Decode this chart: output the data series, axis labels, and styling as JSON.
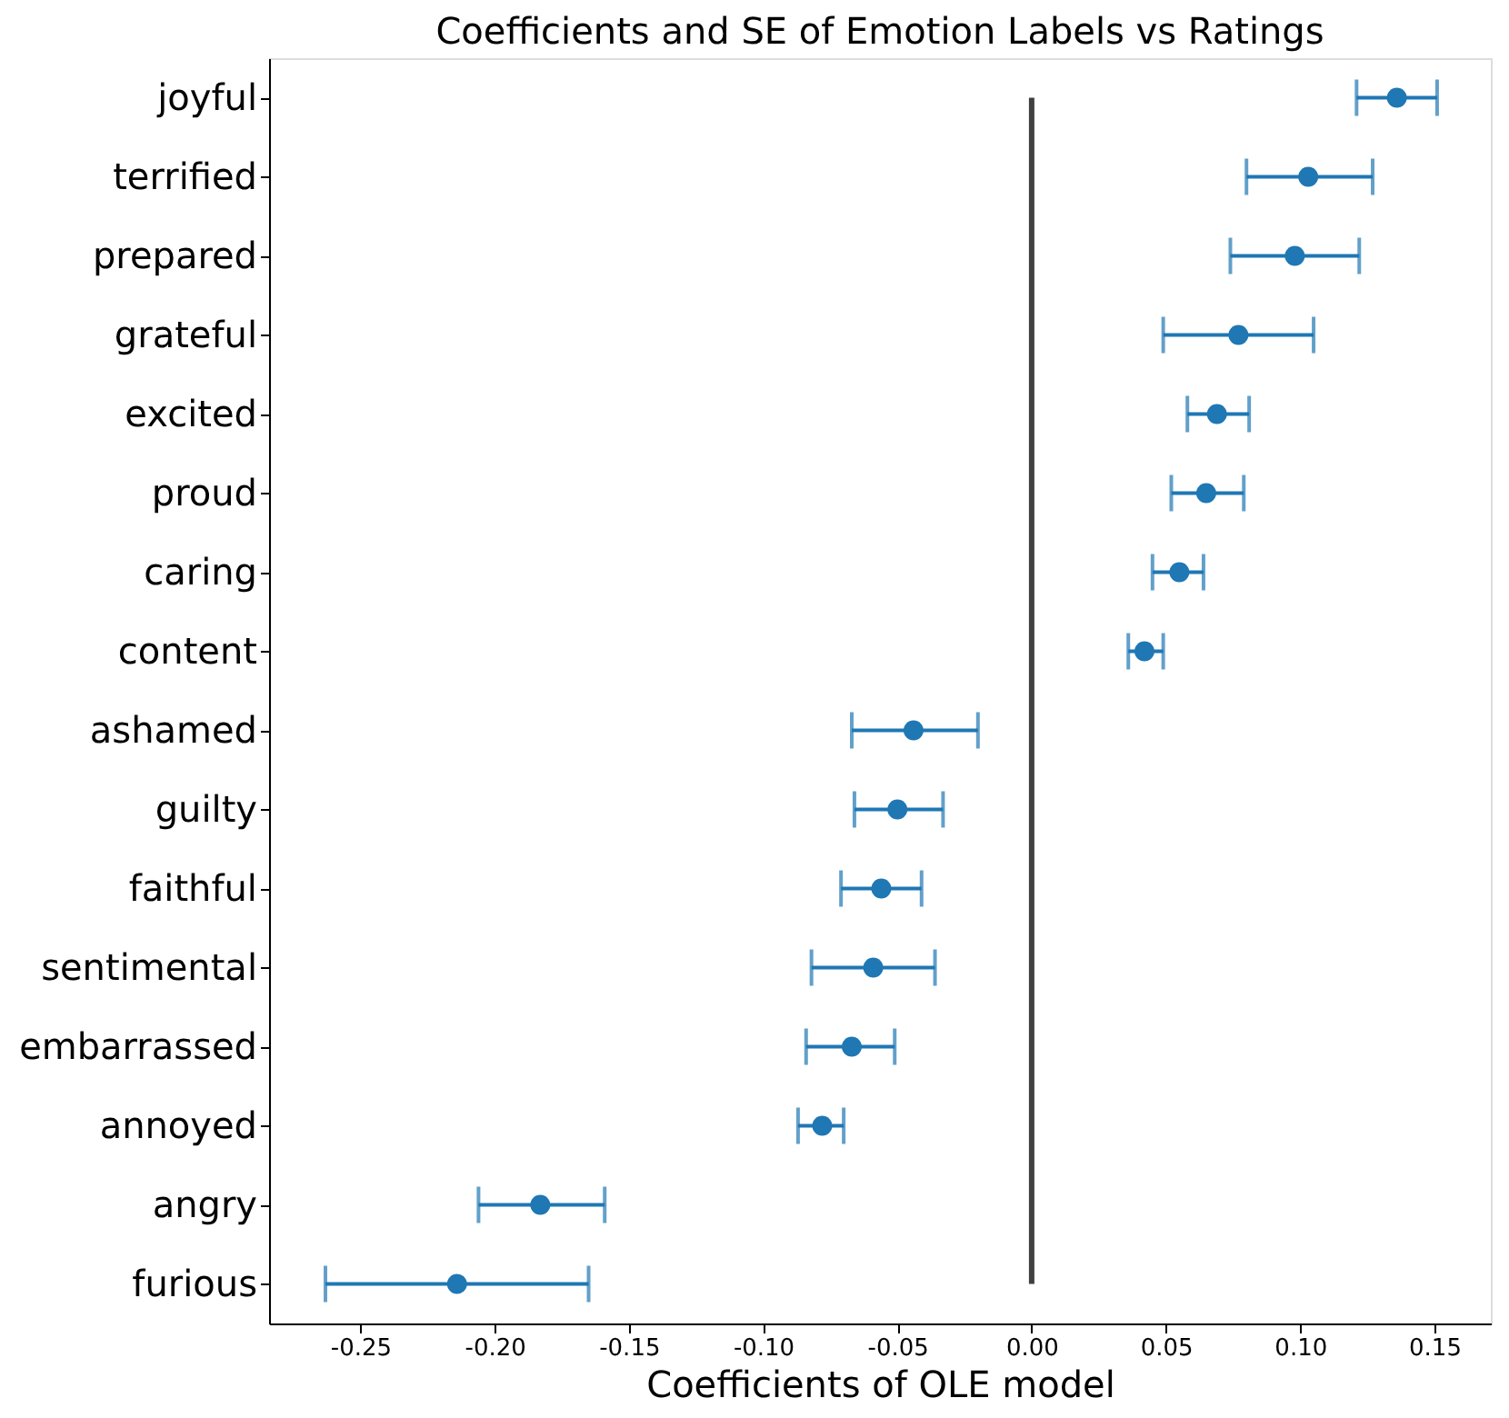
{
  "chart_data": {
    "type": "scatter",
    "orientation": "horizontal",
    "title": "Coefficients and SE of Emotion Labels vs Ratings",
    "xlabel": "Coefficients of OLE model",
    "categories": [
      "joyful",
      "terrified",
      "prepared",
      "grateful",
      "excited",
      "proud",
      "caring",
      "content",
      "ashamed",
      "guilty",
      "faithful",
      "sentimental",
      "embarrassed",
      "annoyed",
      "angry",
      "furious"
    ],
    "values": [
      0.136,
      0.103,
      0.098,
      0.077,
      0.069,
      0.065,
      0.055,
      0.042,
      -0.044,
      -0.05,
      -0.056,
      -0.059,
      -0.067,
      -0.078,
      -0.183,
      -0.214
    ],
    "errors": [
      [
        0.121,
        0.151
      ],
      [
        0.08,
        0.127
      ],
      [
        0.074,
        0.122
      ],
      [
        0.049,
        0.105
      ],
      [
        0.058,
        0.081
      ],
      [
        0.052,
        0.079
      ],
      [
        0.045,
        0.064
      ],
      [
        0.036,
        0.049
      ],
      [
        -0.067,
        -0.02
      ],
      [
        -0.066,
        -0.033
      ],
      [
        -0.071,
        -0.041
      ],
      [
        -0.082,
        -0.036
      ],
      [
        -0.084,
        -0.051
      ],
      [
        -0.087,
        -0.07
      ],
      [
        -0.206,
        -0.159
      ],
      [
        -0.263,
        -0.165
      ]
    ],
    "color": "#1f77b4",
    "marker": "circle",
    "xlim": [
      -0.284,
      0.171
    ],
    "xticks": [
      {
        "value": -0.25,
        "label": "-0.25"
      },
      {
        "value": -0.2,
        "label": "-0.20"
      },
      {
        "value": -0.15,
        "label": "-0.15"
      },
      {
        "value": -0.1,
        "label": "-0.10"
      },
      {
        "value": -0.05,
        "label": "-0.05"
      },
      {
        "value": 0,
        "label": "0.00"
      },
      {
        "value": 0.05,
        "label": "0.05"
      },
      {
        "value": 0.1,
        "label": "0.10"
      },
      {
        "value": 0.15,
        "label": "0.15"
      }
    ],
    "ref_lines": [
      {
        "axis": "x",
        "value": 0,
        "color": "#404040"
      }
    ],
    "grid": false
  }
}
